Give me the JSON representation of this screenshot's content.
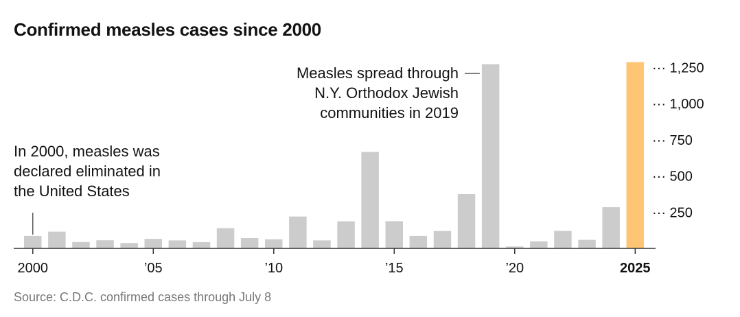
{
  "title": "Confirmed measles cases since 2000",
  "source": "Source: C.D.C. confirmed cases through July 8",
  "colors": {
    "bar": "#cccccc",
    "highlight": "#fdc574",
    "text": "#121212",
    "axis": "#333333",
    "muted": "#777777"
  },
  "chart_data": {
    "type": "bar",
    "title": "Confirmed measles cases since 2000",
    "xlabel": "",
    "ylabel": "",
    "categories": [
      2000,
      2001,
      2002,
      2003,
      2004,
      2005,
      2006,
      2007,
      2008,
      2009,
      2010,
      2011,
      2012,
      2013,
      2014,
      2015,
      2016,
      2017,
      2018,
      2019,
      2020,
      2021,
      2022,
      2023,
      2024,
      2025
    ],
    "values": [
      86,
      116,
      44,
      56,
      37,
      66,
      55,
      43,
      140,
      71,
      63,
      220,
      55,
      187,
      667,
      188,
      86,
      120,
      375,
      1274,
      13,
      49,
      121,
      59,
      285,
      1288
    ],
    "highlight_category": 2025,
    "ylim": [
      0,
      1300
    ],
    "yticks": [
      250,
      500,
      750,
      1000,
      1250
    ],
    "ytick_labels": [
      "250",
      "500",
      "750",
      "1,000",
      "1,250"
    ],
    "xticks": [
      2000,
      2005,
      2010,
      2015,
      2020,
      2025
    ],
    "xtick_labels": [
      "2000",
      "’05",
      "’10",
      "’15",
      "’20",
      "2025"
    ],
    "grid": false,
    "annotations": [
      {
        "target": 2000,
        "lines": [
          "In 2000, measles was",
          "declared eliminated in",
          "the United States"
        ]
      },
      {
        "target": 2019,
        "lines": [
          "Measles spread through",
          "N.Y. Orthodox Jewish",
          "communities in 2019"
        ]
      }
    ]
  }
}
